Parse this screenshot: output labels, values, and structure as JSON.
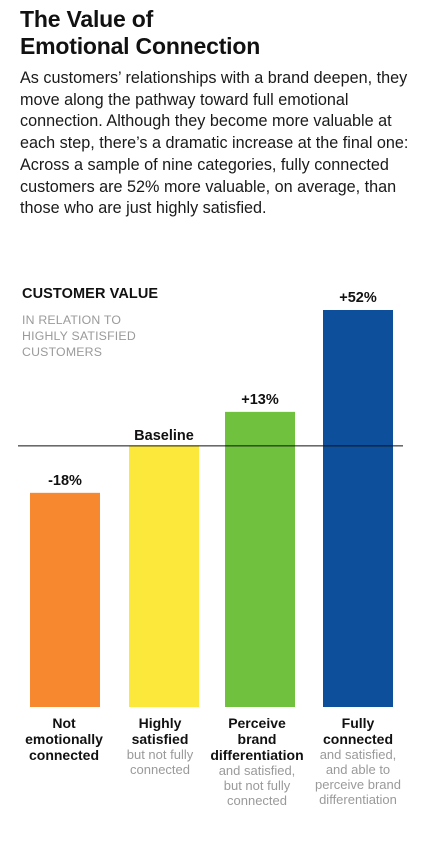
{
  "header": {
    "title_line1": "The Value of",
    "title_line2": "Emotional Connection",
    "description": "As customers’ relationships with a brand deepen, they move along the pathway toward full emotional connection. Although they become more valuable at each step, there’s a dramatic increase at the final one: Across a sample of nine categories, fully connected customers are 52% more valuable, on average, than those who are just highly satisfied."
  },
  "chart_data": {
    "type": "bar",
    "ylabel": "CUSTOMER VALUE",
    "ylabel_sub": "IN RELATION TO HIGHLY SATISFIED CUSTOMERS",
    "baseline_label": "Baseline",
    "baseline_value": 100,
    "categories": [
      {
        "title": "Not emotionally connected",
        "note": ""
      },
      {
        "title": "Highly satisfied",
        "note": "but not fully connected"
      },
      {
        "title": "Perceive brand differentiation",
        "note": "and satisfied, but not fully connected"
      },
      {
        "title": "Fully connected",
        "note": "and satisfied, and able to perceive brand differentiation"
      }
    ],
    "values": [
      82,
      100,
      113,
      152
    ],
    "value_labels": [
      "-18%",
      "",
      "+13%",
      "+52%"
    ],
    "colors": [
      "#f7882f",
      "#fbe83a",
      "#6fc13e",
      "#0d4f9b"
    ],
    "ylim": [
      0,
      152
    ],
    "grid": false,
    "legend": "none"
  }
}
